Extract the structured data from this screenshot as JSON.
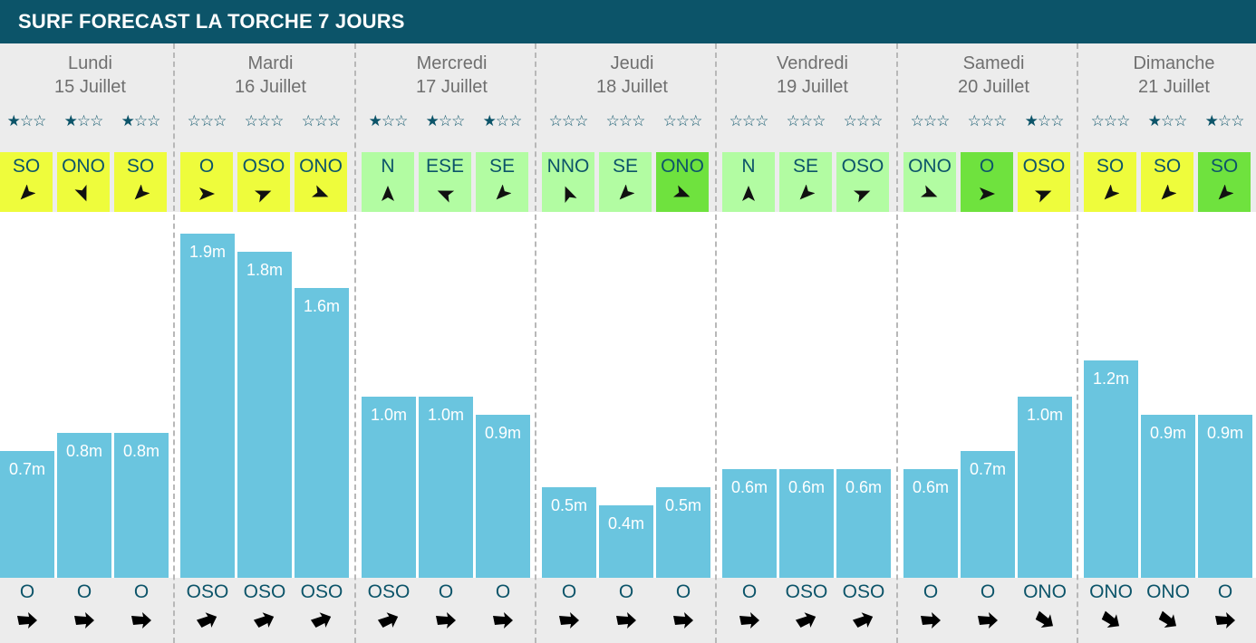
{
  "header": {
    "title": "SURF FORECAST LA TORCHE 7 JOURS",
    "background": "#0c5469"
  },
  "colors": {
    "bar": "#6ac5df",
    "wind_yellow": "#eefc3c",
    "wind_lightgreen": "#b2fca2",
    "wind_green": "#6fe23e",
    "text_dark": "#0c5469",
    "star": "#0c5469"
  },
  "icons": {
    "wind_arrow": "navigation-arrow-icon",
    "swell_arrow": "swell-arrow-icon",
    "star": "star-icon"
  },
  "days": [
    {
      "name": "Lundi",
      "date": "15 Juillet",
      "slots": [
        {
          "stars": "★☆☆",
          "rating": 1,
          "wind": "SO",
          "wind_color": "yellow",
          "wind_rot": 225,
          "wave": 0.7,
          "wave_label": "0.7m",
          "swell": "O",
          "swell_rot": 0
        },
        {
          "stars": "★☆☆",
          "rating": 1,
          "wind": "ONO",
          "wind_color": "yellow",
          "wind_rot": 292,
          "wave": 0.8,
          "wave_label": "0.8m",
          "swell": "O",
          "swell_rot": 0
        },
        {
          "stars": "★☆☆",
          "rating": 1,
          "wind": "SO",
          "wind_color": "yellow",
          "wind_rot": 225,
          "wave": 0.8,
          "wave_label": "0.8m",
          "swell": "O",
          "swell_rot": 0
        }
      ]
    },
    {
      "name": "Mardi",
      "date": "16 Juillet",
      "slots": [
        {
          "stars": "☆☆☆",
          "rating": 0,
          "wind": "O",
          "wind_color": "yellow",
          "wind_rot": 0,
          "wave": 1.9,
          "wave_label": "1.9m",
          "swell": "OSO",
          "swell_rot": -22
        },
        {
          "stars": "☆☆☆",
          "rating": 0,
          "wind": "OSO",
          "wind_color": "yellow",
          "wind_rot": 22,
          "wave": 1.8,
          "wave_label": "1.8m",
          "swell": "OSO",
          "swell_rot": -22
        },
        {
          "stars": "☆☆☆",
          "rating": 0,
          "wind": "ONO",
          "wind_color": "yellow",
          "wind_rot": -22,
          "wave": 1.6,
          "wave_label": "1.6m",
          "swell": "OSO",
          "swell_rot": -22
        }
      ]
    },
    {
      "name": "Mercredi",
      "date": "17 Juillet",
      "slots": [
        {
          "stars": "★☆☆",
          "rating": 1,
          "wind": "N",
          "wind_color": "lightgreen",
          "wind_rot": 90,
          "wave": 1.0,
          "wave_label": "1.0m",
          "swell": "OSO",
          "swell_rot": -22
        },
        {
          "stars": "★☆☆",
          "rating": 1,
          "wind": "ESE",
          "wind_color": "lightgreen",
          "wind_rot": 157,
          "wave": 1.0,
          "wave_label": "1.0m",
          "swell": "O",
          "swell_rot": 0
        },
        {
          "stars": "★☆☆",
          "rating": 1,
          "wind": "SE",
          "wind_color": "lightgreen",
          "wind_rot": 225,
          "wave": 0.9,
          "wave_label": "0.9m",
          "swell": "O",
          "swell_rot": 0
        }
      ]
    },
    {
      "name": "Jeudi",
      "date": "18 Juillet",
      "slots": [
        {
          "stars": "☆☆☆",
          "rating": 0,
          "wind": "NNO",
          "wind_color": "lightgreen",
          "wind_rot": 112,
          "wave": 0.5,
          "wave_label": "0.5m",
          "swell": "O",
          "swell_rot": 0
        },
        {
          "stars": "☆☆☆",
          "rating": 0,
          "wind": "SE",
          "wind_color": "lightgreen",
          "wind_rot": 225,
          "wave": 0.4,
          "wave_label": "0.4m",
          "swell": "O",
          "swell_rot": 0
        },
        {
          "stars": "☆☆☆",
          "rating": 0,
          "wind": "ONO",
          "wind_color": "green",
          "wind_rot": -22,
          "wave": 0.5,
          "wave_label": "0.5m",
          "swell": "O",
          "swell_rot": 0
        }
      ]
    },
    {
      "name": "Vendredi",
      "date": "19 Juillet",
      "slots": [
        {
          "stars": "☆☆☆",
          "rating": 0,
          "wind": "N",
          "wind_color": "lightgreen",
          "wind_rot": 90,
          "wave": 0.6,
          "wave_label": "0.6m",
          "swell": "O",
          "swell_rot": 0
        },
        {
          "stars": "☆☆☆",
          "rating": 0,
          "wind": "SE",
          "wind_color": "lightgreen",
          "wind_rot": 225,
          "wave": 0.6,
          "wave_label": "0.6m",
          "swell": "OSO",
          "swell_rot": -22
        },
        {
          "stars": "☆☆☆",
          "rating": 0,
          "wind": "OSO",
          "wind_color": "lightgreen",
          "wind_rot": 22,
          "wave": 0.6,
          "wave_label": "0.6m",
          "swell": "OSO",
          "swell_rot": -22
        }
      ]
    },
    {
      "name": "Samedi",
      "date": "20 Juillet",
      "slots": [
        {
          "stars": "☆☆☆",
          "rating": 0,
          "wind": "ONO",
          "wind_color": "lightgreen",
          "wind_rot": -22,
          "wave": 0.6,
          "wave_label": "0.6m",
          "swell": "O",
          "swell_rot": 0
        },
        {
          "stars": "☆☆☆",
          "rating": 0,
          "wind": "O",
          "wind_color": "green",
          "wind_rot": 0,
          "wave": 0.7,
          "wave_label": "0.7m",
          "swell": "O",
          "swell_rot": 0
        },
        {
          "stars": "★☆☆",
          "rating": 1,
          "wind": "OSO",
          "wind_color": "yellow",
          "wind_rot": 22,
          "wave": 1.0,
          "wave_label": "1.0m",
          "swell": "ONO",
          "swell_rot": 35
        }
      ]
    },
    {
      "name": "Dimanche",
      "date": "21 Juillet",
      "slots": [
        {
          "stars": "☆☆☆",
          "rating": 0,
          "wind": "SO",
          "wind_color": "yellow",
          "wind_rot": 225,
          "wave": 1.2,
          "wave_label": "1.2m",
          "swell": "ONO",
          "swell_rot": 35
        },
        {
          "stars": "★☆☆",
          "rating": 1,
          "wind": "SO",
          "wind_color": "yellow",
          "wind_rot": 225,
          "wave": 0.9,
          "wave_label": "0.9m",
          "swell": "ONO",
          "swell_rot": 35
        },
        {
          "stars": "★☆☆",
          "rating": 1,
          "wind": "SO",
          "wind_color": "green",
          "wind_rot": 225,
          "wave": 0.9,
          "wave_label": "0.9m",
          "swell": "O",
          "swell_rot": 0
        }
      ]
    }
  ]
}
